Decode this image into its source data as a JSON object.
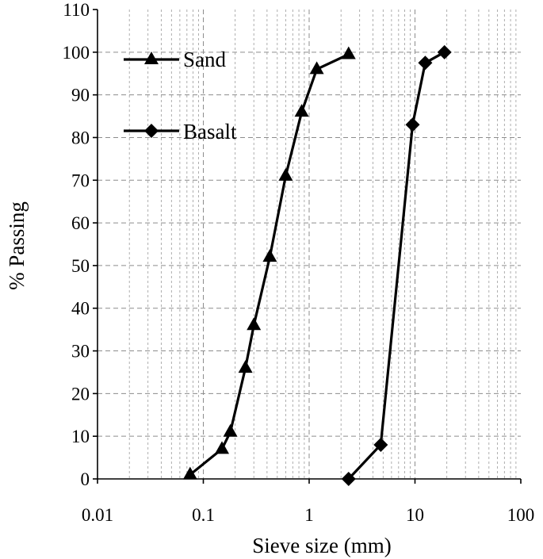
{
  "chart_data": {
    "type": "line",
    "title": "",
    "xlabel": "Sieve size (mm)",
    "ylabel": "% Passing",
    "x_scale": "log",
    "xlim": [
      0.01,
      100
    ],
    "ylim": [
      0,
      110
    ],
    "x_ticks": [
      "0.01",
      "0.1",
      "1",
      "10",
      "100"
    ],
    "y_ticks": [
      "0",
      "10",
      "20",
      "30",
      "40",
      "50",
      "60",
      "70",
      "80",
      "90",
      "100",
      "110"
    ],
    "grid": true,
    "legend_position": "top-left",
    "series": [
      {
        "name": "Sand",
        "marker": "triangle",
        "color": "#000000",
        "points": [
          {
            "x": 0.075,
            "y": 1
          },
          {
            "x": 0.15,
            "y": 7
          },
          {
            "x": 0.18,
            "y": 11
          },
          {
            "x": 0.25,
            "y": 26
          },
          {
            "x": 0.3,
            "y": 36
          },
          {
            "x": 0.425,
            "y": 52
          },
          {
            "x": 0.6,
            "y": 71
          },
          {
            "x": 0.85,
            "y": 86
          },
          {
            "x": 1.18,
            "y": 96
          },
          {
            "x": 2.36,
            "y": 99.5
          }
        ]
      },
      {
        "name": "Basalt",
        "marker": "diamond",
        "color": "#000000",
        "points": [
          {
            "x": 2.36,
            "y": 0
          },
          {
            "x": 4.75,
            "y": 8
          },
          {
            "x": 9.5,
            "y": 83
          },
          {
            "x": 12.5,
            "y": 97.5
          },
          {
            "x": 19,
            "y": 100
          }
        ]
      }
    ]
  }
}
